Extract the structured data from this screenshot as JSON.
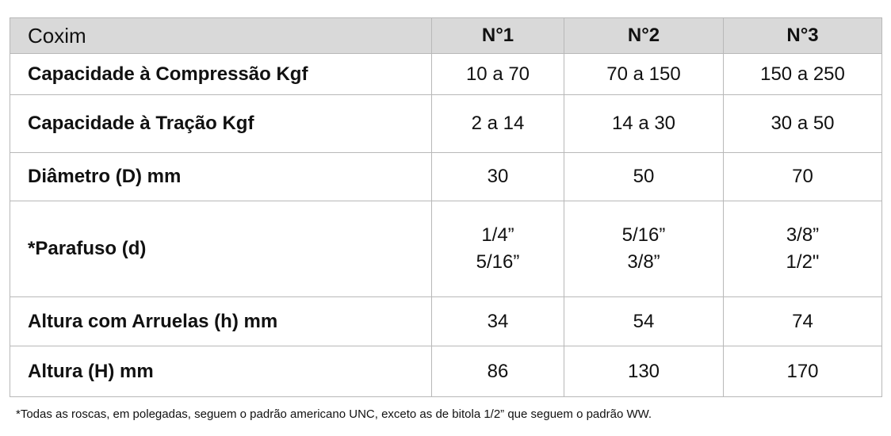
{
  "table": {
    "header": [
      "Coxim",
      "N°1",
      "N°2",
      "N°3"
    ],
    "rows": [
      [
        "Capacidade à Compressão Kgf",
        "10 a 70",
        "70 a 150",
        "150 a 250"
      ],
      [
        "Capacidade à Tração Kgf",
        "2 a 14",
        "14 a 30",
        "30 a 50"
      ],
      [
        "Diâmetro (D) mm",
        "30",
        "50",
        "70"
      ],
      [
        "*Parafuso (d)",
        [
          "1/4”",
          "5/16”"
        ],
        [
          "5/16”",
          "3/8”"
        ],
        [
          "3/8”",
          "1/2\""
        ]
      ],
      [
        "Altura com Arruelas (h) mm",
        "34",
        "54",
        "74"
      ],
      [
        "Altura (H) mm",
        "86",
        "130",
        "170"
      ]
    ]
  },
  "footnote": "*Todas as roscas, em polegadas, seguem o padrão americano UNC, exceto as de bitola 1/2” que seguem o padrão WW."
}
